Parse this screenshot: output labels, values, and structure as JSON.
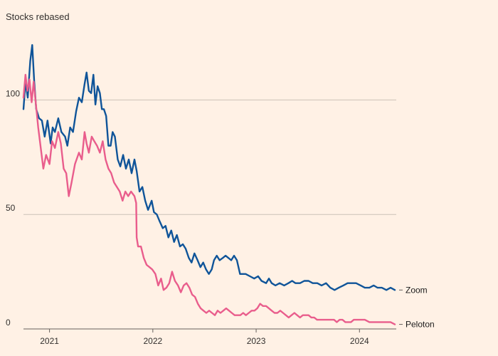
{
  "chart_data": {
    "type": "line",
    "title": "Stocks rebased",
    "xlabel": "",
    "ylabel": "",
    "x_ticks": [
      "2021",
      "2022",
      "2023",
      "2024"
    ],
    "y_ticks": [
      0,
      50,
      100
    ],
    "xlim": [
      "2020-10-01",
      "2024-05-10"
    ],
    "ylim": [
      0,
      125
    ],
    "grid": "horizontal",
    "colors": {
      "background": "#FFF1E5",
      "grid": "#CCC1B7",
      "axis": "#66605C",
      "text": "#33302E"
    },
    "series": [
      {
        "name": "Zoom",
        "color": "#0F5499",
        "points": [
          [
            "2020-10-01",
            96
          ],
          [
            "2020-10-08",
            108
          ],
          [
            "2020-10-16",
            101
          ],
          [
            "2020-10-25",
            117
          ],
          [
            "2020-11-01",
            124
          ],
          [
            "2020-11-08",
            108
          ],
          [
            "2020-11-15",
            96
          ],
          [
            "2020-11-25",
            92
          ],
          [
            "2020-12-05",
            91
          ],
          [
            "2020-12-15",
            84
          ],
          [
            "2020-12-25",
            91
          ],
          [
            "2021-01-05",
            81
          ],
          [
            "2021-01-12",
            88
          ],
          [
            "2021-01-20",
            86
          ],
          [
            "2021-02-01",
            92
          ],
          [
            "2021-02-12",
            86
          ],
          [
            "2021-02-25",
            84
          ],
          [
            "2021-03-05",
            80
          ],
          [
            "2021-03-15",
            88
          ],
          [
            "2021-03-25",
            86
          ],
          [
            "2021-04-05",
            95
          ],
          [
            "2021-04-15",
            101
          ],
          [
            "2021-04-25",
            99
          ],
          [
            "2021-05-05",
            107
          ],
          [
            "2021-05-12",
            112
          ],
          [
            "2021-05-20",
            104
          ],
          [
            "2021-05-28",
            103
          ],
          [
            "2021-06-05",
            111
          ],
          [
            "2021-06-12",
            98
          ],
          [
            "2021-06-20",
            106
          ],
          [
            "2021-06-28",
            103
          ],
          [
            "2021-07-05",
            96
          ],
          [
            "2021-07-12",
            96
          ],
          [
            "2021-07-20",
            93
          ],
          [
            "2021-07-28",
            80
          ],
          [
            "2021-08-05",
            80
          ],
          [
            "2021-08-12",
            86
          ],
          [
            "2021-08-20",
            84
          ],
          [
            "2021-08-30",
            74
          ],
          [
            "2021-09-08",
            71
          ],
          [
            "2021-09-18",
            76
          ],
          [
            "2021-09-28",
            70
          ],
          [
            "2021-10-08",
            74
          ],
          [
            "2021-10-18",
            68
          ],
          [
            "2021-10-28",
            74
          ],
          [
            "2021-11-05",
            69
          ],
          [
            "2021-11-15",
            60
          ],
          [
            "2021-11-25",
            62
          ],
          [
            "2021-12-05",
            56
          ],
          [
            "2021-12-15",
            52
          ],
          [
            "2021-12-28",
            56
          ],
          [
            "2022-01-05",
            51
          ],
          [
            "2022-01-15",
            50
          ],
          [
            "2022-01-25",
            47
          ],
          [
            "2022-02-05",
            44
          ],
          [
            "2022-02-15",
            45
          ],
          [
            "2022-02-25",
            40
          ],
          [
            "2022-03-07",
            43
          ],
          [
            "2022-03-17",
            38
          ],
          [
            "2022-03-27",
            41
          ],
          [
            "2022-04-07",
            36
          ],
          [
            "2022-04-17",
            37
          ],
          [
            "2022-04-27",
            35
          ],
          [
            "2022-05-08",
            31
          ],
          [
            "2022-05-18",
            29
          ],
          [
            "2022-05-28",
            33
          ],
          [
            "2022-06-08",
            30
          ],
          [
            "2022-06-18",
            27
          ],
          [
            "2022-06-28",
            29
          ],
          [
            "2022-07-08",
            26
          ],
          [
            "2022-07-18",
            24
          ],
          [
            "2022-07-28",
            26
          ],
          [
            "2022-08-05",
            30
          ],
          [
            "2022-08-15",
            32
          ],
          [
            "2022-08-25",
            30
          ],
          [
            "2022-09-05",
            31
          ],
          [
            "2022-09-15",
            32
          ],
          [
            "2022-09-25",
            31
          ],
          [
            "2022-10-05",
            30
          ],
          [
            "2022-10-15",
            32
          ],
          [
            "2022-10-25",
            30
          ],
          [
            "2022-11-05",
            24
          ],
          [
            "2022-11-12",
            24
          ],
          [
            "2022-11-25",
            24
          ],
          [
            "2022-12-10",
            23
          ],
          [
            "2022-12-25",
            22
          ],
          [
            "2023-01-08",
            23
          ],
          [
            "2023-01-20",
            21
          ],
          [
            "2023-02-05",
            20
          ],
          [
            "2023-02-15",
            22
          ],
          [
            "2023-02-25",
            20
          ],
          [
            "2023-03-10",
            19
          ],
          [
            "2023-03-25",
            20
          ],
          [
            "2023-04-10",
            19
          ],
          [
            "2023-04-25",
            20
          ],
          [
            "2023-05-08",
            21
          ],
          [
            "2023-05-20",
            20
          ],
          [
            "2023-06-05",
            20
          ],
          [
            "2023-06-20",
            21
          ],
          [
            "2023-07-05",
            21
          ],
          [
            "2023-07-20",
            20
          ],
          [
            "2023-08-05",
            20
          ],
          [
            "2023-08-20",
            19
          ],
          [
            "2023-09-05",
            20
          ],
          [
            "2023-09-20",
            18
          ],
          [
            "2023-10-05",
            17
          ],
          [
            "2023-10-20",
            18
          ],
          [
            "2023-11-05",
            19
          ],
          [
            "2023-11-20",
            20
          ],
          [
            "2023-12-05",
            20
          ],
          [
            "2023-12-20",
            20
          ],
          [
            "2024-01-05",
            19
          ],
          [
            "2024-01-20",
            18
          ],
          [
            "2024-02-05",
            18
          ],
          [
            "2024-02-20",
            19
          ],
          [
            "2024-03-05",
            18
          ],
          [
            "2024-03-20",
            18
          ],
          [
            "2024-04-05",
            17
          ],
          [
            "2024-04-20",
            18
          ],
          [
            "2024-05-05",
            17
          ]
        ]
      },
      {
        "name": "Peloton",
        "color": "#E95D8C",
        "points": [
          [
            "2020-10-01",
            101
          ],
          [
            "2020-10-08",
            111
          ],
          [
            "2020-10-15",
            104
          ],
          [
            "2020-10-22",
            109
          ],
          [
            "2020-10-30",
            99
          ],
          [
            "2020-11-06",
            108
          ],
          [
            "2020-11-14",
            98
          ],
          [
            "2020-11-22",
            88
          ],
          [
            "2020-12-01",
            79
          ],
          [
            "2020-12-10",
            70
          ],
          [
            "2020-12-20",
            76
          ],
          [
            "2021-01-01",
            72
          ],
          [
            "2021-01-10",
            82
          ],
          [
            "2021-01-20",
            79
          ],
          [
            "2021-02-01",
            86
          ],
          [
            "2021-02-10",
            81
          ],
          [
            "2021-02-20",
            70
          ],
          [
            "2021-03-01",
            68
          ],
          [
            "2021-03-10",
            58
          ],
          [
            "2021-03-20",
            64
          ],
          [
            "2021-04-01",
            72
          ],
          [
            "2021-04-15",
            77
          ],
          [
            "2021-04-25",
            74
          ],
          [
            "2021-05-05",
            86
          ],
          [
            "2021-05-12",
            81
          ],
          [
            "2021-05-20",
            77
          ],
          [
            "2021-05-30",
            84
          ],
          [
            "2021-06-08",
            82
          ],
          [
            "2021-06-18",
            80
          ],
          [
            "2021-06-28",
            77
          ],
          [
            "2021-07-08",
            82
          ],
          [
            "2021-07-18",
            74
          ],
          [
            "2021-07-28",
            70
          ],
          [
            "2021-08-07",
            68
          ],
          [
            "2021-08-17",
            64
          ],
          [
            "2021-08-27",
            62
          ],
          [
            "2021-09-06",
            60
          ],
          [
            "2021-09-16",
            56
          ],
          [
            "2021-09-26",
            60
          ],
          [
            "2021-10-06",
            58
          ],
          [
            "2021-10-16",
            60
          ],
          [
            "2021-10-28",
            58
          ],
          [
            "2021-11-03",
            55
          ],
          [
            "2021-11-05",
            40
          ],
          [
            "2021-11-10",
            36
          ],
          [
            "2021-11-20",
            36
          ],
          [
            "2021-11-30",
            31
          ],
          [
            "2021-12-10",
            28
          ],
          [
            "2021-12-20",
            27
          ],
          [
            "2021-12-30",
            26
          ],
          [
            "2022-01-10",
            24
          ],
          [
            "2022-01-20",
            19
          ],
          [
            "2022-01-30",
            22
          ],
          [
            "2022-02-08",
            17
          ],
          [
            "2022-02-18",
            18
          ],
          [
            "2022-02-28",
            20
          ],
          [
            "2022-03-10",
            25
          ],
          [
            "2022-03-20",
            21
          ],
          [
            "2022-03-31",
            19
          ],
          [
            "2022-04-10",
            16
          ],
          [
            "2022-04-20",
            19
          ],
          [
            "2022-04-30",
            20
          ],
          [
            "2022-05-10",
            18
          ],
          [
            "2022-05-20",
            15
          ],
          [
            "2022-05-30",
            14
          ],
          [
            "2022-06-09",
            11
          ],
          [
            "2022-06-19",
            9
          ],
          [
            "2022-06-29",
            8
          ],
          [
            "2022-07-09",
            7
          ],
          [
            "2022-07-19",
            8
          ],
          [
            "2022-07-29",
            7
          ],
          [
            "2022-08-08",
            6
          ],
          [
            "2022-08-18",
            8
          ],
          [
            "2022-08-28",
            7
          ],
          [
            "2022-09-07",
            8
          ],
          [
            "2022-09-17",
            9
          ],
          [
            "2022-09-27",
            8
          ],
          [
            "2022-10-07",
            7
          ],
          [
            "2022-10-17",
            6
          ],
          [
            "2022-10-27",
            6
          ],
          [
            "2022-11-06",
            6
          ],
          [
            "2022-11-16",
            7
          ],
          [
            "2022-11-26",
            6
          ],
          [
            "2022-12-06",
            7
          ],
          [
            "2022-12-16",
            8
          ],
          [
            "2022-12-26",
            8
          ],
          [
            "2023-01-05",
            9
          ],
          [
            "2023-01-15",
            11
          ],
          [
            "2023-01-25",
            10
          ],
          [
            "2023-02-05",
            10
          ],
          [
            "2023-02-15",
            9
          ],
          [
            "2023-02-25",
            8
          ],
          [
            "2023-03-07",
            7
          ],
          [
            "2023-03-17",
            7
          ],
          [
            "2023-03-27",
            8
          ],
          [
            "2023-04-06",
            7
          ],
          [
            "2023-04-16",
            6
          ],
          [
            "2023-04-26",
            5
          ],
          [
            "2023-05-06",
            6
          ],
          [
            "2023-05-16",
            7
          ],
          [
            "2023-05-26",
            6
          ],
          [
            "2023-06-05",
            5
          ],
          [
            "2023-06-15",
            6
          ],
          [
            "2023-06-25",
            6
          ],
          [
            "2023-07-05",
            6
          ],
          [
            "2023-07-15",
            5
          ],
          [
            "2023-07-25",
            5
          ],
          [
            "2023-08-04",
            4
          ],
          [
            "2023-08-14",
            4
          ],
          [
            "2023-08-24",
            4
          ],
          [
            "2023-09-03",
            4
          ],
          [
            "2023-09-13",
            4
          ],
          [
            "2023-09-23",
            4
          ],
          [
            "2023-10-03",
            4
          ],
          [
            "2023-10-13",
            3
          ],
          [
            "2023-10-23",
            4
          ],
          [
            "2023-11-02",
            4
          ],
          [
            "2023-11-12",
            3
          ],
          [
            "2023-11-22",
            3
          ],
          [
            "2023-12-02",
            3
          ],
          [
            "2023-12-12",
            4
          ],
          [
            "2023-12-22",
            4
          ],
          [
            "2024-01-05",
            4
          ],
          [
            "2024-01-20",
            4
          ],
          [
            "2024-02-05",
            3
          ],
          [
            "2024-02-20",
            3
          ],
          [
            "2024-03-05",
            3
          ],
          [
            "2024-03-20",
            3
          ],
          [
            "2024-04-05",
            3
          ],
          [
            "2024-04-20",
            3
          ],
          [
            "2024-05-05",
            2
          ]
        ]
      }
    ]
  }
}
